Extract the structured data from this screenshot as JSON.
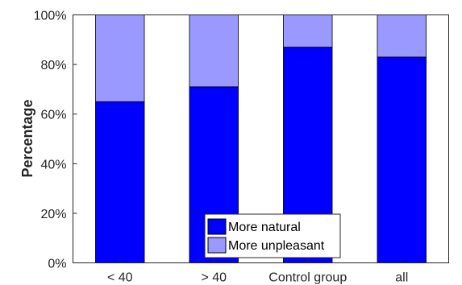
{
  "chart_data": {
    "type": "bar",
    "stacked": true,
    "title": "",
    "xlabel": "",
    "ylabel": "Percentage",
    "ylim": [
      0,
      100
    ],
    "yticks": [
      0,
      20,
      40,
      60,
      80,
      100
    ],
    "ytick_labels": [
      "0%",
      "20%",
      "40%",
      "60%",
      "80%",
      "100%"
    ],
    "categories": [
      "< 40",
      "> 40",
      "Control group",
      "all"
    ],
    "series": [
      {
        "name": "More natural",
        "values": [
          65,
          71,
          87,
          83
        ],
        "color": "#0000ff"
      },
      {
        "name": "More unpleasant",
        "values": [
          35,
          29,
          13,
          17
        ],
        "color": "#9999ff"
      }
    ],
    "legend_position": "bottom-center",
    "grid": false
  }
}
